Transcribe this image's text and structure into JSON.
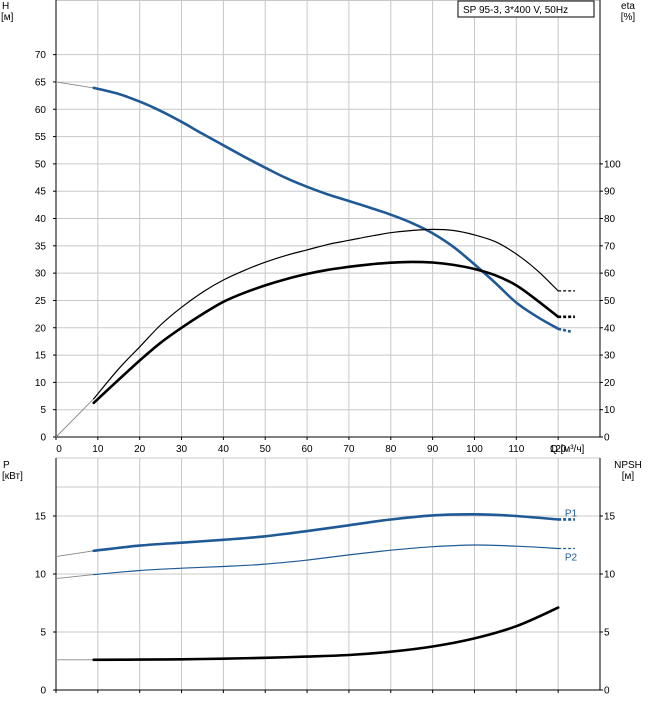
{
  "model_label": "SP 95-3, 3*400 V, 50Hz",
  "chart_data": [
    {
      "panel": "head-efficiency",
      "type": "line",
      "xlabel": "Q [м³/ч]",
      "xlim": [
        0,
        130
      ],
      "xticks": [
        0,
        10,
        20,
        30,
        40,
        50,
        60,
        70,
        80,
        90,
        100,
        110,
        120
      ],
      "ylabel_left": [
        "H",
        "[м]"
      ],
      "ylim_left": [
        0,
        80
      ],
      "yticks_left": [
        0,
        5,
        10,
        15,
        20,
        25,
        30,
        35,
        40,
        45,
        50,
        55,
        60,
        65,
        70
      ],
      "ylabel_right": [
        "eta",
        "[%]"
      ],
      "ylim_right": [
        0,
        160
      ],
      "yticks_right": [
        0,
        10,
        20,
        30,
        40,
        50,
        60,
        70,
        80,
        90,
        100
      ],
      "grid": true,
      "series": [
        {
          "key": "H",
          "axis": "left",
          "color": "#1f5a96",
          "extension_start": [
            [
              0,
              65.0
            ],
            [
              9,
              63.9
            ]
          ],
          "x": [
            9,
            15,
            20,
            25,
            30,
            35,
            40,
            45,
            50,
            55,
            60,
            65,
            70,
            75,
            80,
            85,
            90,
            95,
            100,
            105,
            110,
            115,
            120
          ],
          "y": [
            63.9,
            62.8,
            61.4,
            59.7,
            57.7,
            55.5,
            53.4,
            51.3,
            49.3,
            47.4,
            45.8,
            44.4,
            43.2,
            42.0,
            40.7,
            39.2,
            37.3,
            34.8,
            31.6,
            28.2,
            24.6,
            22.0,
            19.8
          ],
          "extension_end": [
            [
              120,
              19.8
            ],
            [
              123,
              19.3
            ]
          ]
        },
        {
          "key": "eta_thin",
          "axis": "right",
          "color": "#000000",
          "extension_start": [
            [
              0,
              0
            ],
            [
              9,
              14
            ]
          ],
          "x": [
            9,
            15,
            20,
            25,
            30,
            35,
            40,
            45,
            50,
            55,
            60,
            65,
            70,
            75,
            80,
            85,
            90,
            95,
            100,
            105,
            110,
            115,
            120
          ],
          "y": [
            14,
            25,
            33,
            41,
            47.5,
            53,
            57.5,
            61,
            64,
            66.5,
            68.5,
            70.5,
            72,
            73.5,
            74.8,
            75.6,
            76,
            75.6,
            74,
            71.5,
            67,
            61,
            53.5
          ],
          "extension_end": [
            [
              120,
              53.5
            ],
            [
              124,
              53.5
            ]
          ]
        },
        {
          "key": "eta_thick",
          "axis": "right",
          "color": "#000000",
          "x": [
            9,
            15,
            20,
            25,
            30,
            35,
            40,
            45,
            50,
            55,
            60,
            65,
            70,
            75,
            80,
            85,
            90,
            95,
            100,
            105,
            110,
            115,
            120
          ],
          "y": [
            12.5,
            21,
            28,
            34.5,
            40,
            45,
            49.5,
            52.8,
            55.5,
            57.8,
            59.7,
            61.2,
            62.3,
            63.2,
            63.8,
            64.1,
            63.9,
            63,
            61.5,
            59.2,
            55.5,
            50,
            44
          ],
          "extension_end": [
            [
              120,
              44
            ],
            [
              124,
              44
            ]
          ]
        }
      ]
    },
    {
      "panel": "power-npsh",
      "type": "line",
      "xlim": [
        0,
        130
      ],
      "ylabel_left": [
        "P",
        "[кВт]"
      ],
      "ylim_left": [
        0,
        20
      ],
      "yticks_left": [
        0,
        5,
        10,
        15
      ],
      "ylabel_right": [
        "NPSH",
        "[м]"
      ],
      "ylim_right": [
        0,
        20
      ],
      "yticks_right": [
        0,
        5,
        10,
        15
      ],
      "grid": true,
      "series": [
        {
          "key": "P1",
          "name": "P1",
          "axis": "left",
          "color": "#1f5a96",
          "extension_start": [
            [
              0,
              11.5
            ],
            [
              9,
              12.0
            ]
          ],
          "x": [
            9,
            20,
            30,
            40,
            50,
            60,
            70,
            80,
            90,
            100,
            110,
            120
          ],
          "y": [
            12.0,
            12.45,
            12.7,
            12.95,
            13.25,
            13.7,
            14.2,
            14.7,
            15.05,
            15.15,
            15.0,
            14.7
          ],
          "extension_end": [
            [
              120,
              14.7
            ],
            [
              124,
              14.7
            ]
          ]
        },
        {
          "key": "P2",
          "name": "P2",
          "axis": "left",
          "color": "#1f5a96",
          "extension_start": [
            [
              0,
              9.6
            ],
            [
              9,
              9.95
            ]
          ],
          "x": [
            9,
            20,
            30,
            40,
            50,
            60,
            70,
            80,
            90,
            100,
            110,
            120
          ],
          "y": [
            9.95,
            10.3,
            10.5,
            10.65,
            10.85,
            11.2,
            11.65,
            12.05,
            12.35,
            12.5,
            12.4,
            12.2
          ],
          "extension_end": [
            [
              120,
              12.2
            ],
            [
              124,
              12.2
            ]
          ]
        },
        {
          "key": "NPSH",
          "axis": "right",
          "color": "#000000",
          "extension_start": [
            [
              0,
              2.6
            ],
            [
              9,
              2.6
            ]
          ],
          "x": [
            9,
            20,
            30,
            40,
            50,
            60,
            70,
            80,
            90,
            100,
            110,
            120
          ],
          "y": [
            2.6,
            2.62,
            2.65,
            2.7,
            2.78,
            2.88,
            3.02,
            3.3,
            3.75,
            4.45,
            5.5,
            7.1
          ]
        }
      ]
    }
  ]
}
